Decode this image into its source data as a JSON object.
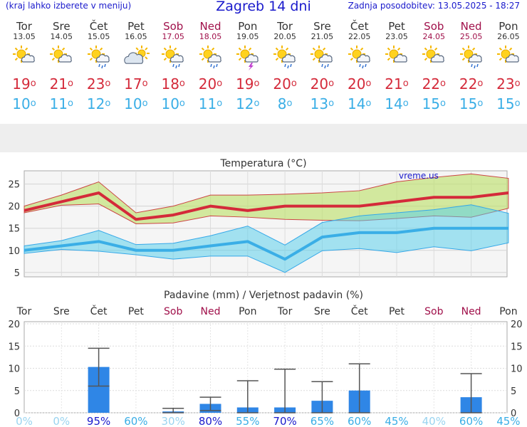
{
  "header": {
    "menu_link": "(kraj lahko izberete v meniju)",
    "title": "Zagreb 14 dni",
    "updated": "Zadnja posodobitev: 13.05.2025 - 18:27"
  },
  "forecast": [
    {
      "day": "Tor",
      "date": "13.05",
      "weekend": false,
      "icon": "sun-cloud-icon",
      "max": "19",
      "min": "10"
    },
    {
      "day": "Sre",
      "date": "14.05",
      "weekend": false,
      "icon": "sun-cloud-icon",
      "max": "21",
      "min": "11"
    },
    {
      "day": "Čet",
      "date": "15.05",
      "weekend": false,
      "icon": "sun-cloud-rain-icon",
      "max": "23",
      "min": "12"
    },
    {
      "day": "Pet",
      "date": "16.05",
      "weekend": false,
      "icon": "cloud-sun-icon",
      "max": "17",
      "min": "10"
    },
    {
      "day": "Sob",
      "date": "17.05",
      "weekend": true,
      "icon": "sun-cloud-rain-icon",
      "max": "18",
      "min": "10"
    },
    {
      "day": "Ned",
      "date": "18.05",
      "weekend": true,
      "icon": "sun-cloud-rain-icon",
      "max": "20",
      "min": "11"
    },
    {
      "day": "Pon",
      "date": "19.05",
      "weekend": false,
      "icon": "cloud-thunder-icon",
      "max": "19",
      "min": "12"
    },
    {
      "day": "Tor",
      "date": "20.05",
      "weekend": false,
      "icon": "sun-cloud-rain-icon",
      "max": "20",
      "min": "8"
    },
    {
      "day": "Sre",
      "date": "21.05",
      "weekend": false,
      "icon": "sun-cloud-rain-icon",
      "max": "20",
      "min": "13"
    },
    {
      "day": "Čet",
      "date": "22.05",
      "weekend": false,
      "icon": "sun-cloud-rain-icon",
      "max": "20",
      "min": "14"
    },
    {
      "day": "Pet",
      "date": "23.05",
      "weekend": false,
      "icon": "sun-cloud-icon",
      "max": "21",
      "min": "14"
    },
    {
      "day": "Sob",
      "date": "24.05",
      "weekend": true,
      "icon": "sun-cloud-icon",
      "max": "22",
      "min": "15"
    },
    {
      "day": "Ned",
      "date": "25.05",
      "weekend": true,
      "icon": "sun-cloud-rain-icon",
      "max": "22",
      "min": "15"
    },
    {
      "day": "Pon",
      "date": "26.05",
      "weekend": false,
      "icon": "sun-cloud-icon",
      "max": "23",
      "min": "15"
    }
  ],
  "colors": {
    "max": "#d42a3a",
    "min": "#3aaee6",
    "weekend": "#a0104a",
    "title": "#1a1acc",
    "bar": "#2f86e6"
  },
  "chart_data": [
    {
      "type": "line",
      "title": "Temperatura (°C)",
      "watermark": "vreme.us",
      "ylim": [
        4,
        28
      ],
      "yticks": [
        5,
        10,
        15,
        20,
        25
      ],
      "series": [
        {
          "role": "max",
          "values": [
            19,
            21,
            23,
            17,
            18,
            20,
            19,
            20,
            20,
            20,
            21,
            22,
            22,
            23
          ]
        },
        {
          "role": "max_upper",
          "values": [
            20,
            22.5,
            25.5,
            18.5,
            20,
            22.5,
            22.5,
            22.7,
            23,
            23.5,
            25.5,
            26.5,
            27.3,
            26.3
          ]
        },
        {
          "role": "max_lower",
          "values": [
            18.5,
            20.2,
            20.5,
            16,
            16.2,
            17.8,
            17.5,
            17,
            16.8,
            16.7,
            17.2,
            17.8,
            17.5,
            19.5
          ]
        },
        {
          "role": "min",
          "values": [
            10,
            11,
            12,
            10,
            10,
            11,
            12,
            8,
            13,
            14,
            14,
            15,
            15,
            15
          ]
        },
        {
          "role": "min_upper",
          "values": [
            11,
            12.2,
            14.5,
            11.3,
            11.6,
            13.3,
            15.5,
            11.2,
            16.3,
            17.8,
            18.5,
            19.2,
            20.3,
            18.4
          ]
        },
        {
          "role": "min_lower",
          "values": [
            9.3,
            10.2,
            9.8,
            9,
            8,
            8.7,
            8.7,
            5,
            9.9,
            10.4,
            9.5,
            10.8,
            9.9,
            11.7
          ]
        }
      ]
    },
    {
      "type": "bar",
      "title": "Padavine (mm) / Verjetnost padavin (%)",
      "ylim": [
        0,
        20
      ],
      "yticks": [
        0,
        5,
        10,
        15,
        20
      ],
      "categories": [
        "Tor",
        "Sre",
        "Čet",
        "Pet",
        "Sob",
        "Ned",
        "Pon",
        "Tor",
        "Sre",
        "Čet",
        "Pet",
        "Sob",
        "Ned",
        "Pon"
      ],
      "weekend": [
        false,
        false,
        false,
        false,
        true,
        true,
        false,
        false,
        false,
        false,
        false,
        true,
        true,
        false
      ],
      "values": [
        0,
        0,
        10.3,
        0,
        0.3,
        2,
        1.2,
        1.2,
        2.7,
        5,
        0,
        0,
        3.5,
        0
      ],
      "err_low": [
        null,
        null,
        6,
        null,
        0,
        0.5,
        0,
        0,
        0,
        0,
        null,
        null,
        0,
        null
      ],
      "err_high": [
        null,
        null,
        14.5,
        null,
        1,
        3.5,
        7.2,
        9.8,
        7,
        11,
        null,
        null,
        8.8,
        null
      ],
      "probabilities": [
        "0%",
        "0%",
        "95%",
        "60%",
        "30%",
        "80%",
        "55%",
        "70%",
        "65%",
        "60%",
        "45%",
        "40%",
        "60%",
        "45%"
      ]
    }
  ]
}
